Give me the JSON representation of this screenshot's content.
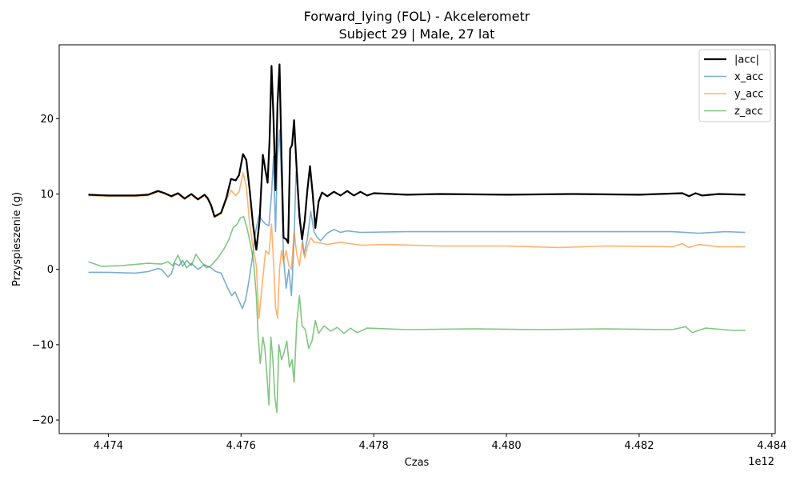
{
  "chart_data": {
    "type": "line",
    "title": "Forward_lying (FOL) - Akcelerometr",
    "subtitle": "Subject 29 | Male, 27 lat",
    "xlabel": "Czas",
    "ylabel": "Przyspieszenie (g)",
    "x_offset_label": "1e12",
    "xlim": [
      4.47326,
      4.48405
    ],
    "ylim": [
      -21.8,
      29.8
    ],
    "x_ticks": [
      4.474,
      4.476,
      4.478,
      4.48,
      4.482,
      4.484
    ],
    "x_tick_labels": [
      "4.474",
      "4.476",
      "4.478",
      "4.480",
      "4.482",
      "4.484"
    ],
    "y_ticks": [
      -20,
      -10,
      0,
      10,
      20
    ],
    "y_tick_labels": [
      "−20",
      "−10",
      "0",
      "10",
      "20"
    ],
    "grid": false,
    "legend_position": "top-right",
    "series": [
      {
        "name": "|acc|",
        "color": "#000000",
        "width": 2.2,
        "opacity": 1,
        "points": [
          [
            4.4737,
            9.9
          ],
          [
            4.474,
            9.8
          ],
          [
            4.4744,
            9.8
          ],
          [
            4.4746,
            9.9
          ],
          [
            4.47475,
            10.4
          ],
          [
            4.47485,
            10.1
          ],
          [
            4.47495,
            9.7
          ],
          [
            4.47505,
            10.1
          ],
          [
            4.47515,
            9.4
          ],
          [
            4.47525,
            10.0
          ],
          [
            4.47535,
            9.3
          ],
          [
            4.47545,
            9.9
          ],
          [
            4.4755,
            9.4
          ],
          [
            4.47555,
            8.5
          ],
          [
            4.4756,
            7.0
          ],
          [
            4.4757,
            7.5
          ],
          [
            4.47578,
            9.5
          ],
          [
            4.47585,
            12.0
          ],
          [
            4.47592,
            11.8
          ],
          [
            4.47597,
            12.5
          ],
          [
            4.47603,
            15.3
          ],
          [
            4.47608,
            14.5
          ],
          [
            4.47613,
            10.5
          ],
          [
            4.47618,
            6.0
          ],
          [
            4.47623,
            2.6
          ],
          [
            4.47628,
            6.5
          ],
          [
            4.47633,
            15.2
          ],
          [
            4.47637,
            13.0
          ],
          [
            4.4764,
            11.5
          ],
          [
            4.47643,
            17.0
          ],
          [
            4.47646,
            27.0
          ],
          [
            4.47649,
            20.0
          ],
          [
            4.47652,
            10.5
          ],
          [
            4.47655,
            22.0
          ],
          [
            4.47658,
            27.2
          ],
          [
            4.47661,
            15.0
          ],
          [
            4.47664,
            4.2
          ],
          [
            4.47668,
            4.0
          ],
          [
            4.47671,
            3.5
          ],
          [
            4.47674,
            16.0
          ],
          [
            4.47677,
            16.5
          ],
          [
            4.4768,
            19.8
          ],
          [
            4.47684,
            13.0
          ],
          [
            4.47688,
            7.0
          ],
          [
            4.47692,
            4.0
          ],
          [
            4.47696,
            6.5
          ],
          [
            4.477,
            10.5
          ],
          [
            4.47704,
            13.7
          ],
          [
            4.47708,
            10.0
          ],
          [
            4.47712,
            5.5
          ],
          [
            4.47717,
            9.0
          ],
          [
            4.47722,
            10.2
          ],
          [
            4.4773,
            9.7
          ],
          [
            4.4774,
            10.3
          ],
          [
            4.4775,
            9.8
          ],
          [
            4.4776,
            10.4
          ],
          [
            4.4777,
            9.8
          ],
          [
            4.4778,
            10.3
          ],
          [
            4.4779,
            9.8
          ],
          [
            4.478,
            10.1
          ],
          [
            4.4785,
            9.9
          ],
          [
            4.479,
            10.0
          ],
          [
            4.48,
            9.9
          ],
          [
            4.481,
            10.0
          ],
          [
            4.482,
            9.9
          ],
          [
            4.48265,
            10.1
          ],
          [
            4.48275,
            9.7
          ],
          [
            4.48285,
            10.1
          ],
          [
            4.48295,
            9.8
          ],
          [
            4.4832,
            10.0
          ],
          [
            4.4836,
            9.9
          ]
        ]
      },
      {
        "name": "x_acc",
        "color": "#1f77b4",
        "width": 1.6,
        "opacity": 0.6,
        "points": [
          [
            4.4737,
            -0.4
          ],
          [
            4.474,
            -0.4
          ],
          [
            4.4744,
            -0.5
          ],
          [
            4.4746,
            -0.3
          ],
          [
            4.47475,
            0.1
          ],
          [
            4.4748,
            0.0
          ],
          [
            4.4749,
            -1.0
          ],
          [
            4.47495,
            -0.6
          ],
          [
            4.475,
            0.8
          ],
          [
            4.47507,
            0.5
          ],
          [
            4.47512,
            1.2
          ],
          [
            4.47518,
            0.2
          ],
          [
            4.47525,
            0.8
          ],
          [
            4.47535,
            0.0
          ],
          [
            4.47545,
            0.6
          ],
          [
            4.47555,
            0.2
          ],
          [
            4.47562,
            -0.3
          ],
          [
            4.4757,
            -0.5
          ],
          [
            4.4758,
            -2.5
          ],
          [
            4.47586,
            -3.5
          ],
          [
            4.47591,
            -3.0
          ],
          [
            4.47597,
            -4.2
          ],
          [
            4.47602,
            -5.2
          ],
          [
            4.47607,
            -4.0
          ],
          [
            4.47612,
            -1.5
          ],
          [
            4.47617,
            1.5
          ],
          [
            4.47622,
            5.0
          ],
          [
            4.47627,
            7.2
          ],
          [
            4.47632,
            6.5
          ],
          [
            4.47637,
            6.0
          ],
          [
            4.47642,
            5.8
          ],
          [
            4.47646,
            10.0
          ],
          [
            4.47649,
            15.0
          ],
          [
            4.47652,
            5.0
          ],
          [
            4.47655,
            15.0
          ],
          [
            4.47658,
            18.5
          ],
          [
            4.47661,
            12.0
          ],
          [
            4.47664,
            1.5
          ],
          [
            4.47668,
            -2.5
          ],
          [
            4.47672,
            0.0
          ],
          [
            4.47676,
            -3.5
          ],
          [
            4.4768,
            4.0
          ],
          [
            4.47683,
            13.0
          ],
          [
            4.47686,
            10.0
          ],
          [
            4.4769,
            6.0
          ],
          [
            4.47695,
            2.0
          ],
          [
            4.477,
            4.0
          ],
          [
            4.47705,
            7.7
          ],
          [
            4.4771,
            5.0
          ],
          [
            4.47715,
            4.2
          ],
          [
            4.4772,
            3.8
          ],
          [
            4.4773,
            4.8
          ],
          [
            4.4774,
            5.3
          ],
          [
            4.4775,
            4.9
          ],
          [
            4.4776,
            5.1
          ],
          [
            4.4778,
            4.9
          ],
          [
            4.4785,
            5.0
          ],
          [
            4.4795,
            5.0
          ],
          [
            4.4805,
            5.0
          ],
          [
            4.4815,
            5.0
          ],
          [
            4.4825,
            5.0
          ],
          [
            4.4829,
            4.8
          ],
          [
            4.4833,
            5.0
          ],
          [
            4.4836,
            4.9
          ]
        ]
      },
      {
        "name": "y_acc",
        "color": "#ff7f0e",
        "width": 1.6,
        "opacity": 0.6,
        "points": [
          [
            4.4737,
            9.8
          ],
          [
            4.474,
            9.7
          ],
          [
            4.4744,
            9.7
          ],
          [
            4.4746,
            9.8
          ],
          [
            4.47475,
            10.3
          ],
          [
            4.47485,
            10.0
          ],
          [
            4.47495,
            9.6
          ],
          [
            4.47505,
            10.0
          ],
          [
            4.47515,
            9.3
          ],
          [
            4.47525,
            9.9
          ],
          [
            4.47535,
            9.2
          ],
          [
            4.47545,
            9.8
          ],
          [
            4.4755,
            9.3
          ],
          [
            4.47555,
            8.3
          ],
          [
            4.4756,
            6.9
          ],
          [
            4.4757,
            7.4
          ],
          [
            4.47578,
            9.2
          ],
          [
            4.47585,
            10.5
          ],
          [
            4.47592,
            9.8
          ],
          [
            4.47597,
            10.3
          ],
          [
            4.47603,
            12.8
          ],
          [
            4.47608,
            11.0
          ],
          [
            4.47613,
            6.0
          ],
          [
            4.47618,
            3.0
          ],
          [
            4.47623,
            0.5
          ],
          [
            4.47627,
            -6.5
          ],
          [
            4.47632,
            -2.0
          ],
          [
            4.47637,
            2.5
          ],
          [
            4.47642,
            2.0
          ],
          [
            4.47646,
            6.0
          ],
          [
            4.47649,
            1.0
          ],
          [
            4.47652,
            -5.0
          ],
          [
            4.47655,
            -6.5
          ],
          [
            4.47658,
            0.0
          ],
          [
            4.47661,
            2.5
          ],
          [
            4.47664,
            1.0
          ],
          [
            4.47668,
            2.5
          ],
          [
            4.47672,
            0.5
          ],
          [
            4.47676,
            0.0
          ],
          [
            4.4768,
            5.0
          ],
          [
            4.47684,
            2.0
          ],
          [
            4.47688,
            0.5
          ],
          [
            4.47692,
            3.5
          ],
          [
            4.47696,
            1.5
          ],
          [
            4.477,
            3.0
          ],
          [
            4.47705,
            4.2
          ],
          [
            4.4771,
            3.6
          ],
          [
            4.4772,
            3.5
          ],
          [
            4.4773,
            3.3
          ],
          [
            4.4775,
            3.6
          ],
          [
            4.4778,
            3.2
          ],
          [
            4.4782,
            3.3
          ],
          [
            4.479,
            3.1
          ],
          [
            4.48,
            3.1
          ],
          [
            4.4808,
            2.9
          ],
          [
            4.4815,
            3.1
          ],
          [
            4.4825,
            3.0
          ],
          [
            4.48265,
            3.4
          ],
          [
            4.48275,
            2.9
          ],
          [
            4.4829,
            3.3
          ],
          [
            4.4832,
            3.0
          ],
          [
            4.4836,
            3.0
          ]
        ]
      },
      {
        "name": "z_acc",
        "color": "#2ca02c",
        "width": 1.6,
        "opacity": 0.6,
        "points": [
          [
            4.4737,
            1.0
          ],
          [
            4.4738,
            0.7
          ],
          [
            4.4739,
            0.4
          ],
          [
            4.4742,
            0.5
          ],
          [
            4.4746,
            0.8
          ],
          [
            4.4748,
            0.7
          ],
          [
            4.4749,
            1.0
          ],
          [
            4.47497,
            0.5
          ],
          [
            4.47505,
            1.9
          ],
          [
            4.47512,
            0.4
          ],
          [
            4.47518,
            1.2
          ],
          [
            4.47525,
            0.5
          ],
          [
            4.47532,
            2.0
          ],
          [
            4.4754,
            1.0
          ],
          [
            4.47548,
            0.2
          ],
          [
            4.47555,
            0.5
          ],
          [
            4.47565,
            1.5
          ],
          [
            4.47575,
            2.8
          ],
          [
            4.47582,
            4.0
          ],
          [
            4.47588,
            5.5
          ],
          [
            4.47594,
            6.0
          ],
          [
            4.47599,
            6.8
          ],
          [
            4.47604,
            7.0
          ],
          [
            4.47609,
            5.5
          ],
          [
            4.47614,
            3.5
          ],
          [
            4.47619,
            1.0
          ],
          [
            4.47623,
            -3.5
          ],
          [
            4.47626,
            -9.0
          ],
          [
            4.47629,
            -12.5
          ],
          [
            4.47633,
            -9.0
          ],
          [
            4.47636,
            -10.5
          ],
          [
            4.47639,
            -14.0
          ],
          [
            4.47642,
            -18.0
          ],
          [
            4.47645,
            -9.0
          ],
          [
            4.47648,
            -12.0
          ],
          [
            4.47651,
            -17.0
          ],
          [
            4.47654,
            -19.0
          ],
          [
            4.47657,
            -10.0
          ],
          [
            4.47661,
            -12.0
          ],
          [
            4.47665,
            -11.0
          ],
          [
            4.47669,
            -9.5
          ],
          [
            4.47673,
            -13.0
          ],
          [
            4.47677,
            -12.0
          ],
          [
            4.4768,
            -15.0
          ],
          [
            4.47684,
            -7.0
          ],
          [
            4.47688,
            -3.5
          ],
          [
            4.47692,
            -7.5
          ],
          [
            4.47697,
            -8.0
          ],
          [
            4.47702,
            -10.5
          ],
          [
            4.47707,
            -9.5
          ],
          [
            4.47712,
            -6.8
          ],
          [
            4.47717,
            -8.5
          ],
          [
            4.47725,
            -7.5
          ],
          [
            4.47735,
            -8.2
          ],
          [
            4.47745,
            -7.7
          ],
          [
            4.47755,
            -8.5
          ],
          [
            4.47765,
            -7.8
          ],
          [
            4.47775,
            -8.4
          ],
          [
            4.4779,
            -7.8
          ],
          [
            4.4785,
            -8.0
          ],
          [
            4.4795,
            -7.9
          ],
          [
            4.4805,
            -8.0
          ],
          [
            4.4815,
            -7.9
          ],
          [
            4.4825,
            -8.0
          ],
          [
            4.4827,
            -7.6
          ],
          [
            4.4828,
            -8.4
          ],
          [
            4.483,
            -7.8
          ],
          [
            4.4834,
            -8.1
          ],
          [
            4.4836,
            -8.1
          ]
        ]
      }
    ]
  }
}
